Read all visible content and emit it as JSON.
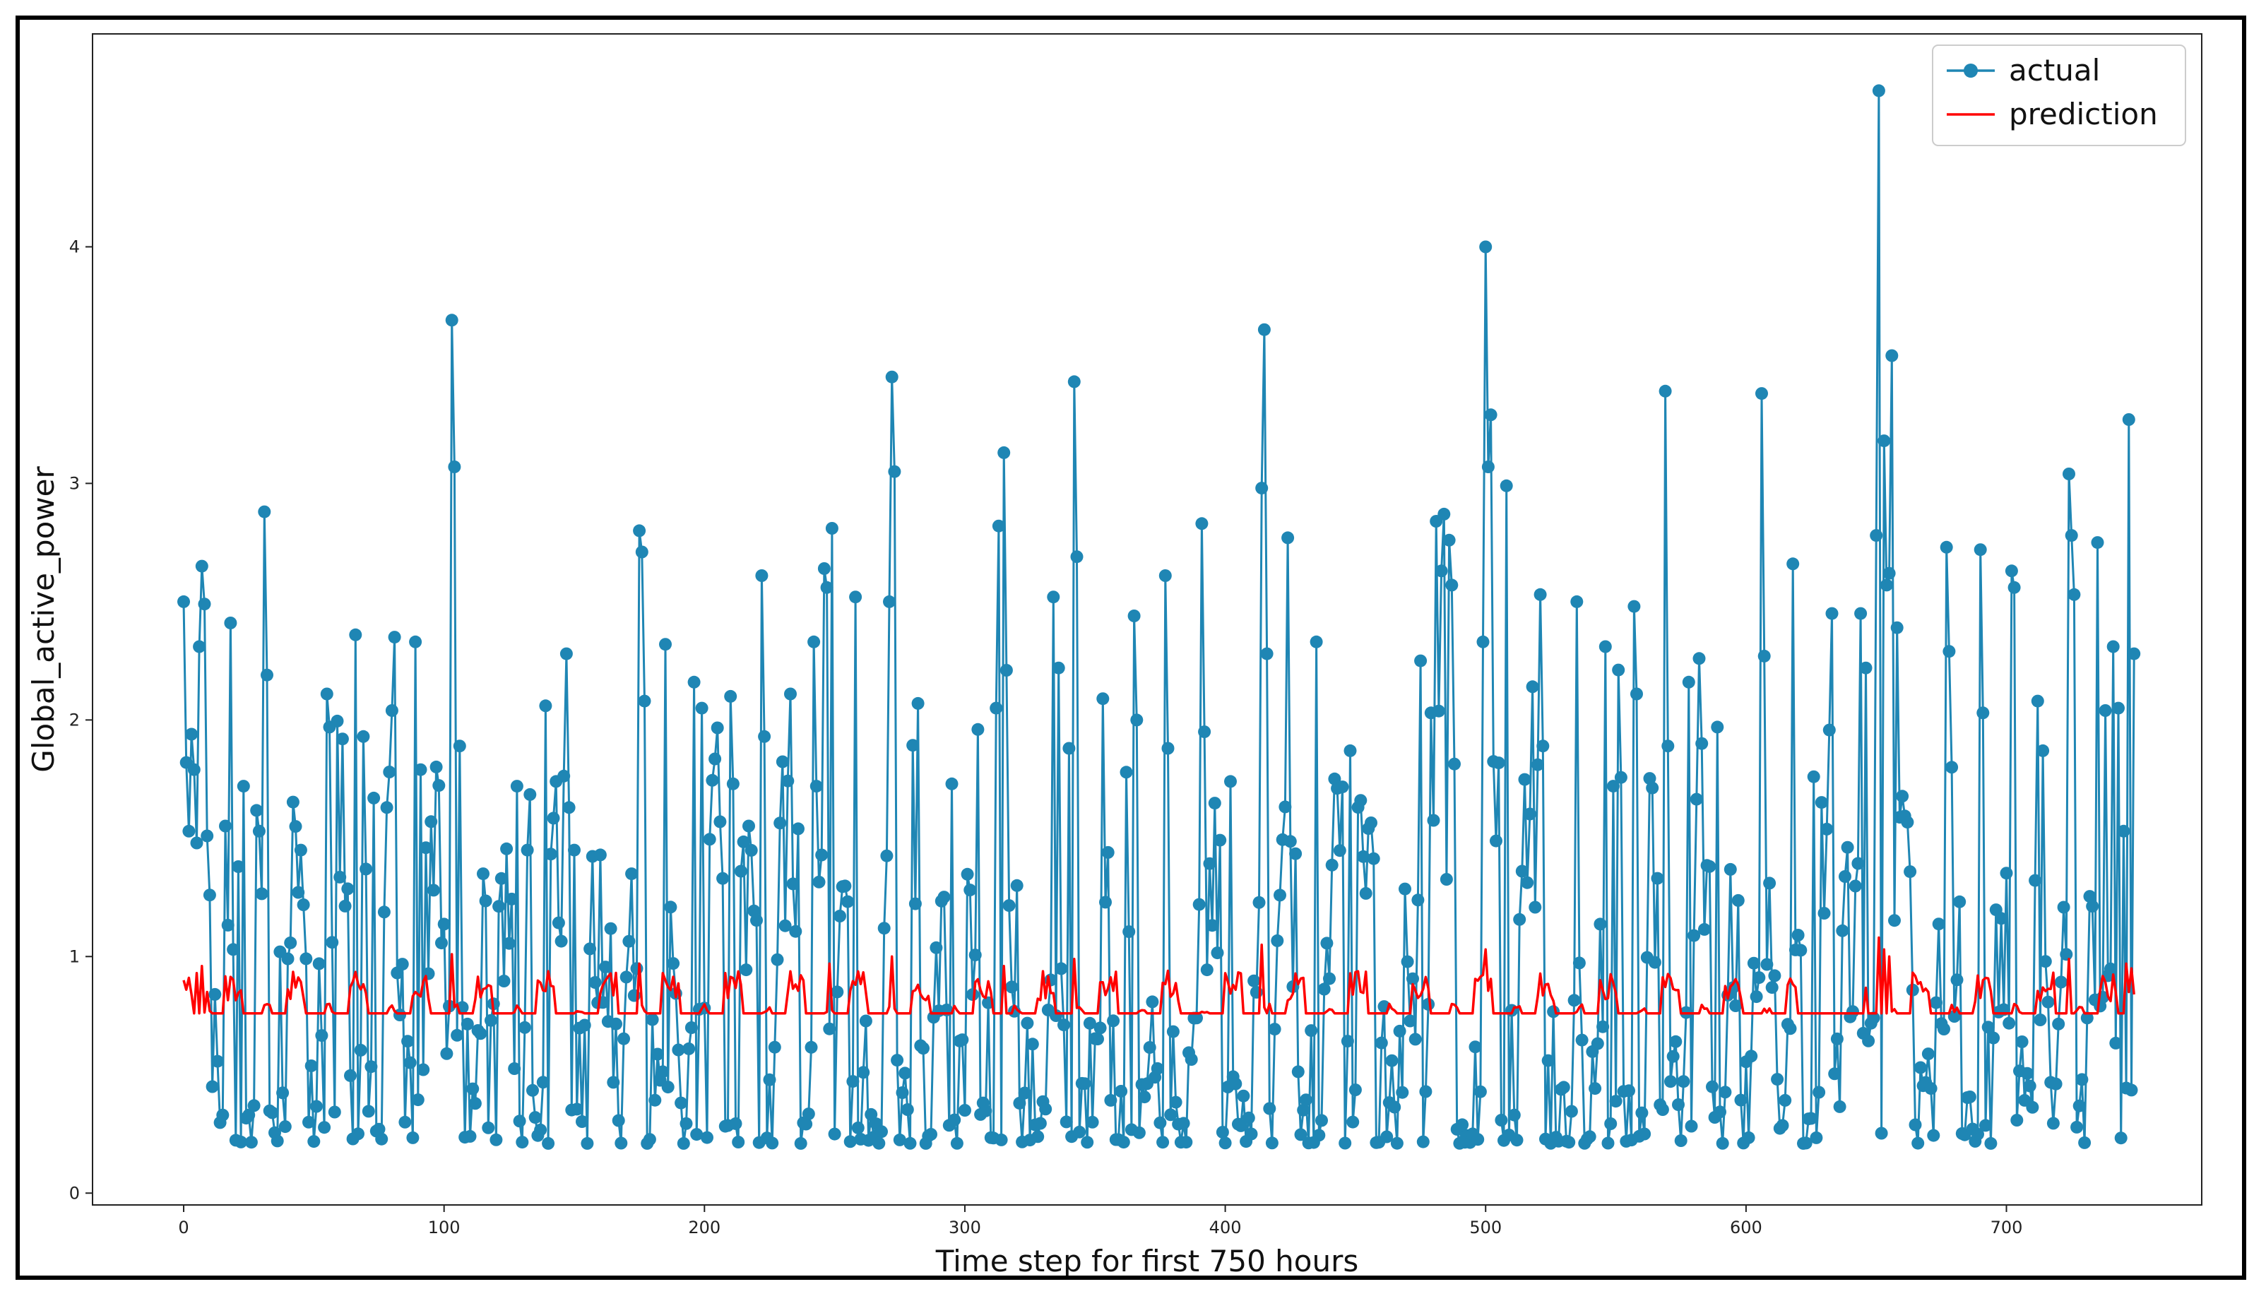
{
  "chart_data": {
    "type": "line",
    "title": "",
    "xlabel": "Time step for first 750 hours",
    "ylabel": "Global_active_power",
    "xlim": [
      -35,
      775
    ],
    "ylim": [
      -0.05,
      4.9
    ],
    "xticks": [
      0,
      100,
      200,
      300,
      400,
      500,
      600,
      700
    ],
    "yticks": [
      0,
      1,
      2,
      3,
      4
    ],
    "legend_position": "top-right",
    "grid": false,
    "series": [
      {
        "name": "actual",
        "color": "#1f86b4",
        "marker": "circle",
        "n_points": 750,
        "seed": 7,
        "anchors": [
          [
            0,
            2.5
          ],
          [
            1,
            1.82
          ],
          [
            2,
            1.53
          ],
          [
            3,
            1.94
          ],
          [
            4,
            1.79
          ],
          [
            5,
            1.48
          ],
          [
            6,
            2.31
          ],
          [
            7,
            2.65
          ],
          [
            8,
            2.49
          ],
          [
            9,
            1.51
          ],
          [
            10,
            1.26
          ],
          [
            11,
            0.45
          ],
          [
            12,
            0.84
          ],
          [
            15,
            0.33
          ],
          [
            18,
            2.41
          ],
          [
            19,
            1.03
          ],
          [
            21,
            1.38
          ],
          [
            23,
            1.72
          ],
          [
            25,
            0.33
          ],
          [
            27,
            0.37
          ],
          [
            29,
            1.53
          ],
          [
            31,
            2.88
          ],
          [
            32,
            2.19
          ],
          [
            34,
            0.34
          ],
          [
            37,
            1.02
          ],
          [
            43,
            1.55
          ],
          [
            45,
            1.45
          ],
          [
            48,
            0.3
          ],
          [
            52,
            0.97
          ],
          [
            55,
            2.11
          ],
          [
            56,
            1.97
          ],
          [
            57,
            1.06
          ],
          [
            66,
            2.36
          ],
          [
            69,
            1.93
          ],
          [
            70,
            1.37
          ],
          [
            73,
            1.67
          ],
          [
            78,
            1.63
          ],
          [
            79,
            1.78
          ],
          [
            80,
            2.04
          ],
          [
            81,
            2.35
          ],
          [
            85,
            0.3
          ],
          [
            89,
            2.33
          ],
          [
            91,
            1.79
          ],
          [
            93,
            1.46
          ],
          [
            103,
            3.69
          ],
          [
            104,
            3.07
          ],
          [
            106,
            1.89
          ],
          [
            110,
            0.24
          ],
          [
            115,
            1.35
          ],
          [
            118,
            0.73
          ],
          [
            128,
            1.72
          ],
          [
            132,
            1.45
          ],
          [
            139,
            2.06
          ],
          [
            143,
            1.74
          ],
          [
            147,
            2.28
          ],
          [
            148,
            1.63
          ],
          [
            150,
            1.45
          ],
          [
            172,
            1.35
          ],
          [
            175,
            2.8
          ],
          [
            176,
            2.71
          ],
          [
            177,
            2.08
          ],
          [
            185,
            2.32
          ],
          [
            196,
            2.16
          ],
          [
            199,
            2.05
          ],
          [
            210,
            2.1
          ],
          [
            211,
            1.73
          ],
          [
            222,
            2.61
          ],
          [
            223,
            1.93
          ],
          [
            233,
            2.11
          ],
          [
            236,
            1.54
          ],
          [
            242,
            2.33
          ],
          [
            243,
            1.72
          ],
          [
            246,
            2.64
          ],
          [
            247,
            2.56
          ],
          [
            249,
            2.81
          ],
          [
            258,
            2.52
          ],
          [
            271,
            2.5
          ],
          [
            272,
            3.45
          ],
          [
            273,
            3.05
          ],
          [
            282,
            2.07
          ],
          [
            295,
            1.73
          ],
          [
            300,
            0.35
          ],
          [
            305,
            1.96
          ],
          [
            312,
            2.05
          ],
          [
            313,
            2.82
          ],
          [
            315,
            3.13
          ],
          [
            316,
            2.21
          ],
          [
            320,
            1.3
          ],
          [
            334,
            2.52
          ],
          [
            336,
            2.22
          ],
          [
            340,
            1.88
          ],
          [
            342,
            3.43
          ],
          [
            343,
            2.69
          ],
          [
            349,
            0.3
          ],
          [
            353,
            2.09
          ],
          [
            355,
            1.44
          ],
          [
            365,
            2.44
          ],
          [
            366,
            2.0
          ],
          [
            377,
            2.61
          ],
          [
            378,
            1.88
          ],
          [
            391,
            2.83
          ],
          [
            392,
            1.95
          ],
          [
            402,
            1.74
          ],
          [
            414,
            2.98
          ],
          [
            415,
            3.65
          ],
          [
            416,
            2.28
          ],
          [
            424,
            2.77
          ],
          [
            435,
            2.33
          ],
          [
            448,
            1.87
          ],
          [
            452,
            1.66
          ],
          [
            464,
            0.56
          ],
          [
            475,
            2.25
          ],
          [
            479,
            2.03
          ],
          [
            481,
            2.84
          ],
          [
            483,
            2.63
          ],
          [
            484,
            2.87
          ],
          [
            486,
            2.76
          ],
          [
            487,
            2.57
          ],
          [
            499,
            2.33
          ],
          [
            500,
            4.0
          ],
          [
            501,
            3.07
          ],
          [
            502,
            3.29
          ],
          [
            508,
            2.99
          ],
          [
            521,
            2.53
          ],
          [
            522,
            1.89
          ],
          [
            535,
            2.5
          ],
          [
            546,
            2.31
          ],
          [
            549,
            1.72
          ],
          [
            553,
            0.43
          ],
          [
            557,
            2.48
          ],
          [
            558,
            2.11
          ],
          [
            569,
            3.39
          ],
          [
            570,
            1.89
          ],
          [
            578,
            2.16
          ],
          [
            582,
            2.26
          ],
          [
            589,
            1.97
          ],
          [
            606,
            3.38
          ],
          [
            607,
            2.27
          ],
          [
            618,
            2.66
          ],
          [
            626,
            1.76
          ],
          [
            633,
            2.45
          ],
          [
            644,
            2.45
          ],
          [
            646,
            2.22
          ],
          [
            650,
            2.78
          ],
          [
            651,
            4.66
          ],
          [
            653,
            3.18
          ],
          [
            654,
            2.57
          ],
          [
            655,
            2.62
          ],
          [
            656,
            3.54
          ],
          [
            658,
            2.39
          ],
          [
            677,
            2.73
          ],
          [
            678,
            2.29
          ],
          [
            679,
            1.8
          ],
          [
            690,
            2.72
          ],
          [
            691,
            2.03
          ],
          [
            702,
            2.63
          ],
          [
            703,
            2.56
          ],
          [
            712,
            2.08
          ],
          [
            714,
            1.87
          ],
          [
            724,
            3.04
          ],
          [
            725,
            2.78
          ],
          [
            726,
            2.53
          ],
          [
            735,
            2.75
          ],
          [
            738,
            2.04
          ],
          [
            741,
            2.31
          ],
          [
            743,
            2.05
          ],
          [
            745,
            1.53
          ],
          [
            747,
            3.27
          ],
          [
            749,
            2.28
          ]
        ]
      },
      {
        "name": "prediction",
        "color": "#ff0000",
        "marker": "none",
        "n_points": 750,
        "baseline": 0.76,
        "period": 24,
        "anchors": [
          [
            0,
            0.9
          ],
          [
            1,
            0.86
          ],
          [
            2,
            0.91
          ],
          [
            3,
            0.84
          ],
          [
            5,
            0.93
          ],
          [
            7,
            0.96
          ],
          [
            9,
            0.85
          ],
          [
            10,
            0.77
          ],
          [
            103,
            1.01
          ],
          [
            175,
            0.97
          ],
          [
            248,
            0.97
          ],
          [
            272,
            1.0
          ],
          [
            315,
            0.96
          ],
          [
            342,
            0.99
          ],
          [
            414,
            1.05
          ],
          [
            500,
            1.03
          ],
          [
            651,
            1.08
          ],
          [
            653,
            1.03
          ],
          [
            655,
            1.0
          ],
          [
            724,
            0.99
          ],
          [
            746,
            0.97
          ],
          [
            747,
            0.85
          ],
          [
            748,
            0.95
          ],
          [
            749,
            0.84
          ]
        ],
        "flat_ranges": [
          [
            620,
            645
          ]
        ]
      }
    ]
  }
}
